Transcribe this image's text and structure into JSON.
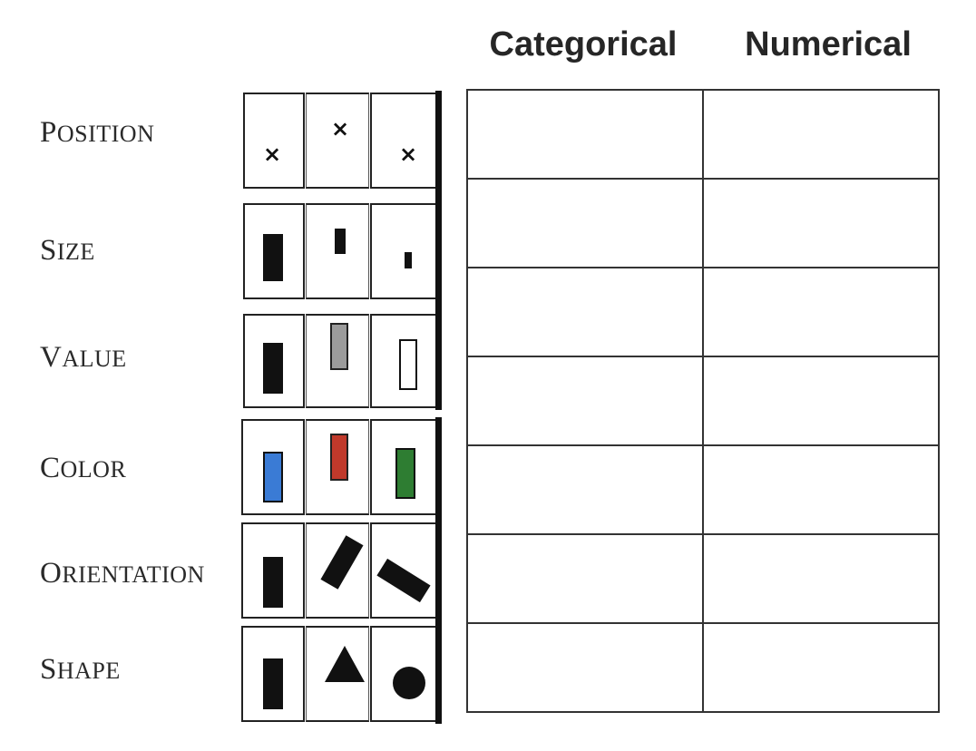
{
  "headers": {
    "categorical": "Categorical",
    "numerical": "Numerical"
  },
  "rows": [
    {
      "first": "P",
      "rest": "OSITION"
    },
    {
      "first": "S",
      "rest": "IZE"
    },
    {
      "first": "V",
      "rest": "ALUE"
    },
    {
      "first": "C",
      "rest": "OLOR"
    },
    {
      "first": "O",
      "rest": "RIENTATION"
    },
    {
      "first": "S",
      "rest": "HAPE"
    }
  ],
  "marks": {
    "position_symbol": "×",
    "value_colors": [
      "#111111",
      "#9b9b9b",
      "#ffffff"
    ],
    "color_swatches": [
      "#3a7bd5",
      "#c0392b",
      "#2e7d32"
    ],
    "icons": [
      "x-mark-icon",
      "rectangle-icon",
      "triangle-icon",
      "circle-icon"
    ]
  },
  "table": {
    "rows": 7,
    "columns": 2
  }
}
